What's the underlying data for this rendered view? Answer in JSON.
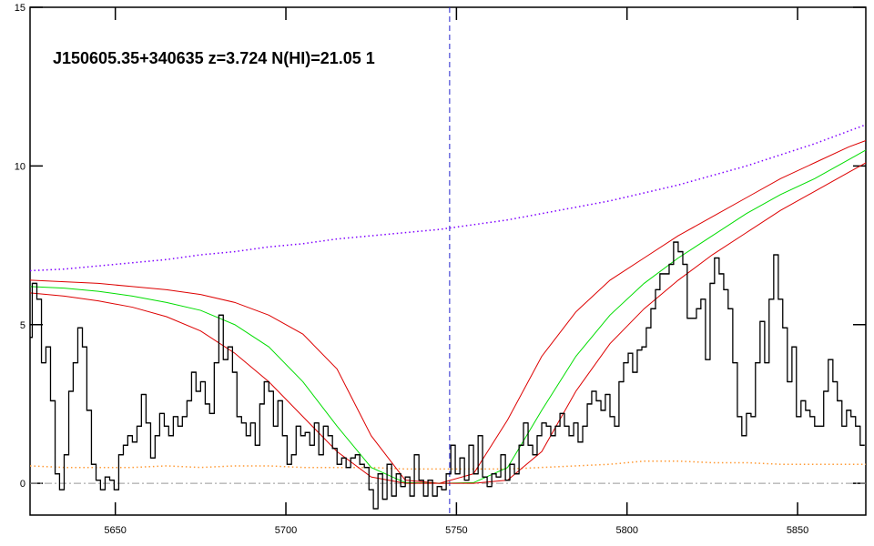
{
  "chart_data": {
    "type": "line",
    "title": "J150605.35+340635 z=3.724 N(HI)=21.05 1",
    "xlim": [
      5625,
      5870
    ],
    "ylim": [
      -1,
      15
    ],
    "xticks": [
      5650,
      5700,
      5750,
      5800,
      5850
    ],
    "yticks": [
      0,
      5,
      10,
      15
    ],
    "vline_x": 5748,
    "spectrum": {
      "color": "#000000",
      "x": [
        5625,
        5626.3,
        5627.7,
        5629,
        5630.3,
        5631.7,
        5633,
        5634.3,
        5635.7,
        5637,
        5638.3,
        5639.7,
        5641,
        5642.3,
        5643.7,
        5645,
        5646.3,
        5647.7,
        5649,
        5650.3,
        5651.7,
        5653,
        5654.3,
        5655.7,
        5657,
        5658.3,
        5659.7,
        5661,
        5662.3,
        5663.7,
        5665,
        5666.3,
        5667.7,
        5669,
        5670.3,
        5671.7,
        5673,
        5674.3,
        5675.7,
        5677,
        5678.3,
        5679.7,
        5681,
        5682.3,
        5683.7,
        5685,
        5686.3,
        5687.7,
        5689,
        5690.3,
        5691.7,
        5693,
        5694.3,
        5695.7,
        5697,
        5698.3,
        5699.7,
        5701,
        5702.3,
        5703.7,
        5705,
        5706.3,
        5707.7,
        5709,
        5710.3,
        5711.7,
        5713,
        5714.3,
        5715.7,
        5717,
        5718.3,
        5719.7,
        5721,
        5722.3,
        5723.7,
        5725,
        5726.3,
        5727.7,
        5729,
        5730.3,
        5731.7,
        5733,
        5734.3,
        5735.7,
        5737,
        5738.3,
        5739.7,
        5741,
        5742.3,
        5743.7,
        5745,
        5746.3,
        5747.7,
        5749,
        5750.3,
        5751.7,
        5753,
        5754.3,
        5755.7,
        5757,
        5758.3,
        5759.7,
        5761,
        5762.3,
        5763.7,
        5765,
        5766.3,
        5767.7,
        5769,
        5770.3,
        5771.7,
        5773,
        5774.3,
        5775.7,
        5777,
        5778.3,
        5779.7,
        5781,
        5782.3,
        5783.7,
        5785,
        5786.3,
        5787.7,
        5789,
        5790.3,
        5791.7,
        5793,
        5794.3,
        5795.7,
        5797,
        5798.3,
        5799.7,
        5801,
        5802.3,
        5803.7,
        5805,
        5806.3,
        5807.7,
        5809,
        5810.3,
        5811.7,
        5813,
        5814.3,
        5815.7,
        5817,
        5818.3,
        5819.7,
        5821,
        5822.3,
        5823.7,
        5825,
        5826.3,
        5827.7,
        5829,
        5830.3,
        5831.7,
        5833,
        5834.3,
        5835.7,
        5837,
        5838.3,
        5839.7,
        5841,
        5842.3,
        5843.7,
        5845,
        5846.3,
        5847.7,
        5849,
        5850.3,
        5851.7,
        5853,
        5854.3,
        5855.7,
        5857,
        5858.3,
        5859.7,
        5861,
        5862.3,
        5863.7,
        5865,
        5866.3,
        5867.7,
        5869
      ],
      "values": [
        4.6,
        6.3,
        5.8,
        3.8,
        4.3,
        2.6,
        0.3,
        -0.2,
        0.9,
        2.9,
        3.8,
        4.9,
        4.3,
        2.3,
        0.6,
        0.1,
        -0.2,
        0.2,
        0.1,
        -0.2,
        0.9,
        1.2,
        1.5,
        1.3,
        1.8,
        2.8,
        1.9,
        0.8,
        1.5,
        2.2,
        1.8,
        1.5,
        2.1,
        1.8,
        2.1,
        2.6,
        3.5,
        2.9,
        3.2,
        2.5,
        2.2,
        3.8,
        5.3,
        3.9,
        4.3,
        3.5,
        2.1,
        1.9,
        1.5,
        1.9,
        1.2,
        2.5,
        3.2,
        2.9,
        1.8,
        2.6,
        1.5,
        0.6,
        0.9,
        1.8,
        1.5,
        1.6,
        1.2,
        1.9,
        0.9,
        1.8,
        1.5,
        1.1,
        0.6,
        0.8,
        0.5,
        0.8,
        0.9,
        0.6,
        0.5,
        -0.2,
        -0.8,
        0.3,
        -0.5,
        0.6,
        -0.4,
        0.3,
        -0.1,
        0.2,
        -0.4,
        0.9,
        0.1,
        -0.4,
        0.1,
        -0.4,
        -0.1,
        -0.2,
        0.3,
        1.2,
        0.3,
        0.8,
        0.1,
        1.2,
        0.3,
        1.5,
        0.2,
        -0.1,
        0.3,
        0.2,
        0.9,
        0.1,
        0.6,
        0.3,
        1.2,
        1.9,
        1.2,
        0.9,
        1.5,
        1.9,
        1.8,
        1.5,
        1.8,
        2.2,
        1.8,
        1.5,
        1.9,
        1.3,
        1.8,
        2.5,
        2.9,
        2.6,
        2.3,
        2.8,
        2.1,
        1.8,
        3.2,
        3.8,
        4.1,
        3.5,
        4.2,
        4.3,
        4.9,
        5.5,
        6.1,
        6.6,
        6.6,
        6.9,
        7.6,
        7.3,
        6.9,
        5.2,
        5.2,
        5.5,
        5.8,
        3.9,
        6.3,
        7.1,
        6.6,
        6.1,
        5.5,
        3.8,
        2.1,
        1.5,
        2.2,
        2.1,
        3.8,
        5.1,
        3.8,
        5.8,
        7.2,
        5.8,
        4.9,
        3.2,
        4.3,
        2.1,
        2.6,
        2.3,
        2.1,
        1.8,
        1.8,
        2.9,
        3.9,
        3.2,
        2.6,
        1.8,
        2.3,
        2.1,
        1.8,
        1.2
      ]
    },
    "model_x": [
      5625,
      5635,
      5645,
      5655,
      5665,
      5675,
      5685,
      5695,
      5705,
      5715,
      5725,
      5735,
      5745,
      5755,
      5765,
      5775,
      5785,
      5795,
      5805,
      5815,
      5825,
      5835,
      5845,
      5855,
      5865,
      5870
    ],
    "models": [
      {
        "color": "#7f00ff",
        "style": "dotted",
        "values": [
          6.7,
          6.75,
          6.85,
          6.95,
          7.05,
          7.2,
          7.3,
          7.45,
          7.55,
          7.7,
          7.8,
          7.9,
          8.0,
          8.15,
          8.3,
          8.5,
          8.7,
          8.9,
          9.15,
          9.4,
          9.7,
          10.0,
          10.35,
          10.7,
          11.1,
          11.3
        ]
      },
      {
        "color": "#ff9933",
        "style": "dotted",
        "values": [
          0.55,
          0.5,
          0.5,
          0.5,
          0.55,
          0.5,
          0.55,
          0.55,
          0.5,
          0.5,
          0.5,
          0.45,
          0.45,
          0.45,
          0.45,
          0.5,
          0.55,
          0.6,
          0.7,
          0.7,
          0.65,
          0.65,
          0.6,
          0.6,
          0.6,
          0.6
        ]
      },
      {
        "color": "#dd0000",
        "style": "solid",
        "values": [
          6.4,
          6.35,
          6.3,
          6.2,
          6.1,
          5.95,
          5.7,
          5.3,
          4.7,
          3.6,
          1.5,
          0.1,
          0,
          0.3,
          2.0,
          4.0,
          5.4,
          6.4,
          7.1,
          7.8,
          8.4,
          9.0,
          9.6,
          10.1,
          10.6,
          10.8
        ]
      },
      {
        "color": "#00dd00",
        "style": "solid",
        "values": [
          6.2,
          6.15,
          6.05,
          5.9,
          5.7,
          5.45,
          5.0,
          4.3,
          3.2,
          1.8,
          0.5,
          0.02,
          0,
          0.02,
          0.5,
          2.3,
          4.0,
          5.3,
          6.3,
          7.1,
          7.8,
          8.5,
          9.1,
          9.6,
          10.2,
          10.5
        ]
      },
      {
        "color": "#dd0000",
        "style": "solid",
        "values": [
          6.0,
          5.9,
          5.75,
          5.55,
          5.25,
          4.8,
          4.1,
          3.2,
          2.1,
          1.0,
          0.2,
          0,
          0,
          0,
          0.1,
          1.0,
          2.9,
          4.4,
          5.5,
          6.4,
          7.2,
          7.9,
          8.6,
          9.2,
          9.8,
          10.1
        ]
      }
    ]
  }
}
